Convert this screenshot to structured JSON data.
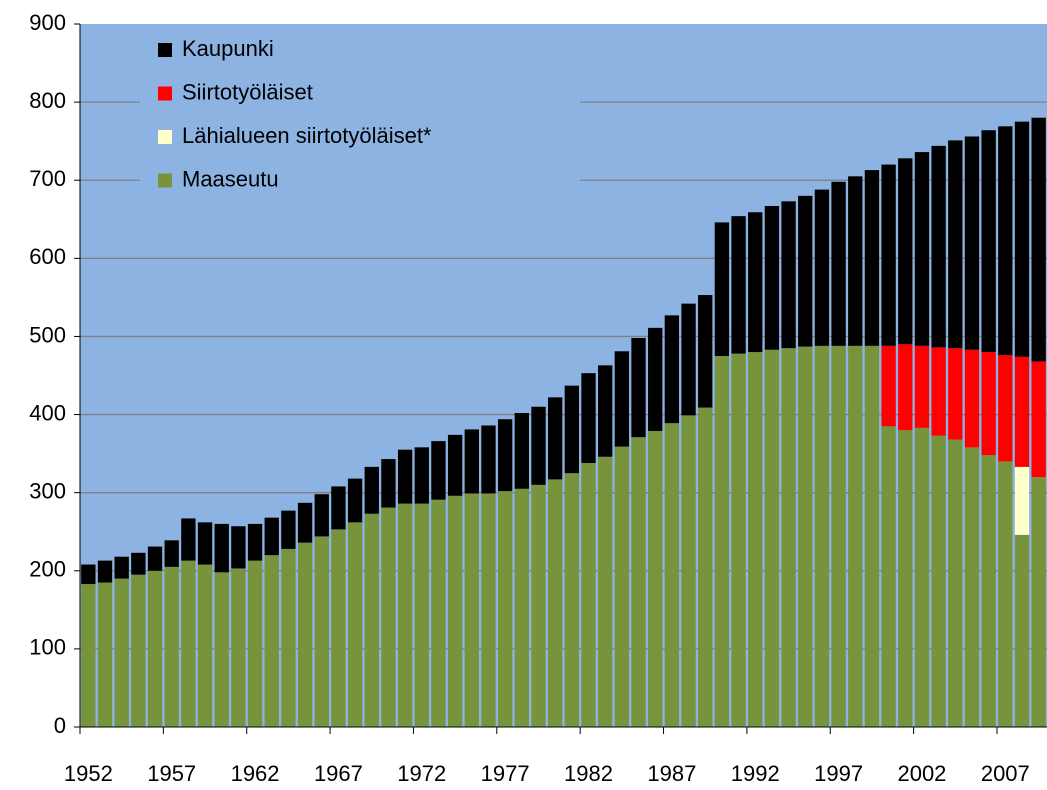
{
  "chart_data": {
    "type": "stacked_bar",
    "categories": [
      1952,
      null,
      null,
      null,
      null,
      1957,
      null,
      null,
      null,
      null,
      1962,
      null,
      null,
      null,
      null,
      1967,
      null,
      null,
      null,
      null,
      1972,
      null,
      null,
      null,
      null,
      1977,
      null,
      null,
      null,
      null,
      1982,
      null,
      null,
      null,
      null,
      1987,
      null,
      null,
      null,
      null,
      1992,
      null,
      null,
      null,
      null,
      1997,
      null,
      null,
      null,
      null,
      2002,
      null,
      null,
      null,
      null,
      2007,
      null,
      null
    ],
    "series": [
      {
        "name": "Kaupunki",
        "color": "#000000",
        "values": [
          25,
          28,
          28,
          28,
          31,
          34,
          54,
          54,
          62,
          54,
          47,
          48,
          49,
          51,
          54,
          55,
          56,
          60,
          62,
          69,
          72,
          75,
          78,
          82,
          87,
          92,
          97,
          100,
          105,
          112,
          115,
          117,
          122,
          127,
          132,
          138,
          143,
          144,
          171,
          176,
          179,
          184,
          188,
          193,
          200,
          210,
          217,
          225,
          232,
          238,
          248,
          258,
          266,
          273,
          284,
          293,
          301,
          312
        ]
      },
      {
        "name": "Siirtotyöläiset",
        "color": "#ff0000",
        "values": [
          null,
          null,
          null,
          null,
          null,
          null,
          null,
          null,
          null,
          null,
          null,
          null,
          null,
          null,
          null,
          null,
          null,
          null,
          null,
          null,
          null,
          null,
          null,
          null,
          null,
          null,
          null,
          null,
          null,
          null,
          null,
          null,
          null,
          null,
          null,
          null,
          null,
          null,
          null,
          null,
          null,
          null,
          null,
          null,
          null,
          null,
          null,
          null,
          103,
          110,
          105,
          113,
          117,
          125,
          132,
          136,
          141,
          148
        ]
      },
      {
        "name": "Lähialueen siirtotyöläiset*",
        "color": "#ffffcc",
        "values": [
          null,
          null,
          null,
          null,
          null,
          null,
          null,
          null,
          null,
          null,
          null,
          null,
          null,
          null,
          null,
          null,
          null,
          null,
          null,
          null,
          null,
          null,
          null,
          null,
          null,
          null,
          null,
          null,
          null,
          null,
          null,
          null,
          null,
          null,
          null,
          null,
          null,
          null,
          null,
          null,
          null,
          null,
          null,
          null,
          null,
          null,
          null,
          null,
          null,
          null,
          null,
          null,
          null,
          null,
          null,
          null,
          87,
          null
        ]
      },
      {
        "name": "Maaseutu",
        "color": "#77933c",
        "values": [
          183,
          185,
          190,
          195,
          200,
          205,
          213,
          208,
          198,
          203,
          213,
          220,
          228,
          236,
          244,
          253,
          262,
          273,
          281,
          286,
          286,
          291,
          296,
          299,
          299,
          302,
          305,
          310,
          317,
          325,
          338,
          346,
          359,
          371,
          379,
          389,
          399,
          409,
          475,
          478,
          480,
          483,
          485,
          487,
          488,
          488,
          488,
          488,
          385,
          380,
          383,
          373,
          368,
          358,
          348,
          340,
          246,
          320
        ]
      }
    ],
    "ylim": [
      0,
      900
    ],
    "yticks": [
      0,
      100,
      200,
      300,
      400,
      500,
      600,
      700,
      800,
      900
    ],
    "grid": true,
    "legend": "upper left",
    "background": "#8db3e2"
  }
}
